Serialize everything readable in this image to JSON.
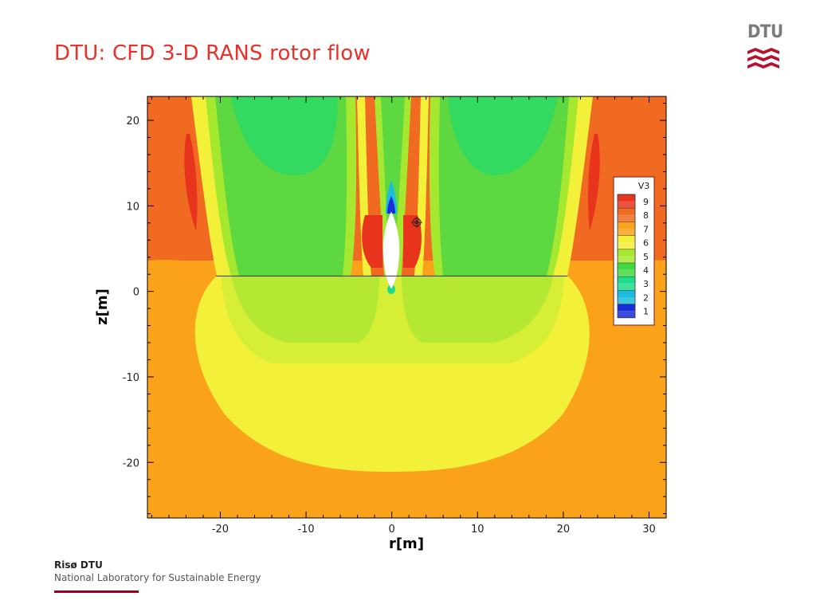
{
  "slide": {
    "title": "DTU: CFD 3-D RANS rotor flow",
    "logo_text": "DTU",
    "footer_org": "Risø DTU",
    "footer_sub": "National Laboratory for Sustainable Energy"
  },
  "chart_data": {
    "type": "heatmap",
    "title": "",
    "xlabel": "r[m]",
    "ylabel": "z[m]",
    "xlim": [
      -28.5,
      32
    ],
    "ylim": [
      -26.5,
      22.8
    ],
    "x_ticks": [
      -20,
      -10,
      0,
      10,
      20,
      30
    ],
    "y_ticks": [
      20,
      10,
      0,
      -10,
      -20
    ],
    "rotor_line": {
      "x": [
        -20.5,
        20.5
      ],
      "z": 1.8
    },
    "legend": {
      "title": "V3",
      "position": "right",
      "levels": [
        "9",
        "8",
        "7",
        "6",
        "5",
        "4",
        "3",
        "2",
        "1"
      ]
    },
    "colors": {
      "level9": "#e8341c",
      "level8": "#f06a22",
      "level7": "#f9a21a",
      "level6": "#f3f03a",
      "level5": "#a6e830",
      "level4": "#44d840",
      "level3": "#1fdc8c",
      "level2": "#1cbce0",
      "level1": "#1a2ed8"
    }
  }
}
